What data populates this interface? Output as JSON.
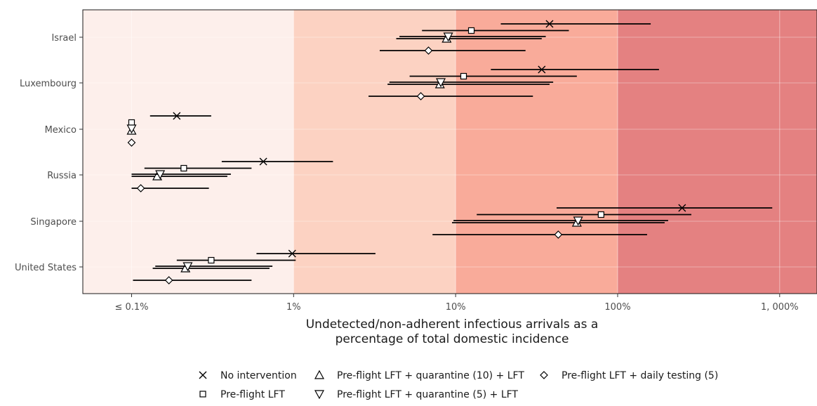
{
  "chart_data": {
    "type": "interval",
    "xscale": "log",
    "xlim": [
      0.05,
      1700
    ],
    "xticks": [
      {
        "value": 0.1,
        "label": "≤ 0.1%"
      },
      {
        "value": 1,
        "label": "1%"
      },
      {
        "value": 10,
        "label": "10%"
      },
      {
        "value": 100,
        "label": "100%"
      },
      {
        "value": 1000,
        "label": "1, 000%"
      }
    ],
    "xlabel_lines": [
      "Undetected/non-adherent infectious arrivals as a",
      "percentage of total domestic incidence"
    ],
    "ylabel": "",
    "grid": true,
    "legend_position": "bottom",
    "background_bands": [
      {
        "from": 0.05,
        "to": 1,
        "color": "#fdefeb"
      },
      {
        "from": 1,
        "to": 10,
        "color": "#fcd2c2"
      },
      {
        "from": 10,
        "to": 100,
        "color": "#f9ab9a"
      },
      {
        "from": 100,
        "to": 1700,
        "color": "#e48181"
      }
    ],
    "series": [
      {
        "name": "No intervention",
        "marker": "x"
      },
      {
        "name": "Pre-flight LFT",
        "marker": "square"
      },
      {
        "name": "Pre-flight LFT + quarantine (10) + LFT",
        "marker": "triangle-up"
      },
      {
        "name": "Pre-flight LFT + quarantine (5) + LFT",
        "marker": "triangle-down"
      },
      {
        "name": "Pre-flight LFT + daily testing (5)",
        "marker": "diamond"
      }
    ],
    "categories": [
      "Israel",
      "Luxembourg",
      "Mexico",
      "Russia",
      "Singapore",
      "United States"
    ],
    "data": [
      {
        "country": "Israel",
        "points": [
          {
            "series": 0,
            "median": 38,
            "low": 19,
            "high": 160
          },
          {
            "series": 1,
            "median": 12.5,
            "low": 6.2,
            "high": 50
          },
          {
            "series": 2,
            "median": 8.8,
            "low": 4.3,
            "high": 34
          },
          {
            "series": 3,
            "median": 9.0,
            "low": 4.5,
            "high": 36
          },
          {
            "series": 4,
            "median": 6.8,
            "low": 3.4,
            "high": 27
          }
        ]
      },
      {
        "country": "Luxembourg",
        "points": [
          {
            "series": 0,
            "median": 34,
            "low": 16.5,
            "high": 180
          },
          {
            "series": 1,
            "median": 11.2,
            "low": 5.2,
            "high": 56
          },
          {
            "series": 2,
            "median": 8.0,
            "low": 3.8,
            "high": 38
          },
          {
            "series": 3,
            "median": 8.1,
            "low": 3.9,
            "high": 40
          },
          {
            "series": 4,
            "median": 6.1,
            "low": 2.9,
            "high": 30
          }
        ]
      },
      {
        "country": "Mexico",
        "points": [
          {
            "series": 0,
            "median": 0.19,
            "low": 0.13,
            "high": 0.31
          },
          {
            "series": 1,
            "median": 0.1,
            "low": null,
            "high": null
          },
          {
            "series": 2,
            "median": 0.1,
            "low": null,
            "high": null
          },
          {
            "series": 3,
            "median": 0.1,
            "low": null,
            "high": null
          },
          {
            "series": 4,
            "median": 0.1,
            "low": null,
            "high": null
          }
        ]
      },
      {
        "country": "Russia",
        "points": [
          {
            "series": 0,
            "median": 0.65,
            "low": 0.36,
            "high": 1.75
          },
          {
            "series": 1,
            "median": 0.21,
            "low": 0.12,
            "high": 0.55
          },
          {
            "series": 2,
            "median": 0.144,
            "low": 0.1,
            "high": 0.39
          },
          {
            "series": 3,
            "median": 0.15,
            "low": 0.1,
            "high": 0.41
          },
          {
            "series": 4,
            "median": 0.114,
            "low": 0.1,
            "high": 0.3
          }
        ]
      },
      {
        "country": "Singapore",
        "points": [
          {
            "series": 0,
            "median": 250,
            "low": 42,
            "high": 900
          },
          {
            "series": 1,
            "median": 79,
            "low": 13.5,
            "high": 285
          },
          {
            "series": 2,
            "median": 56,
            "low": 9.5,
            "high": 195
          },
          {
            "series": 3,
            "median": 57,
            "low": 9.7,
            "high": 205
          },
          {
            "series": 4,
            "median": 43,
            "low": 7.2,
            "high": 152
          }
        ]
      },
      {
        "country": "United States",
        "points": [
          {
            "series": 0,
            "median": 0.98,
            "low": 0.59,
            "high": 3.2
          },
          {
            "series": 1,
            "median": 0.31,
            "low": 0.19,
            "high": 1.03
          },
          {
            "series": 2,
            "median": 0.215,
            "low": 0.135,
            "high": 0.71
          },
          {
            "series": 3,
            "median": 0.222,
            "low": 0.14,
            "high": 0.74
          },
          {
            "series": 4,
            "median": 0.17,
            "low": 0.102,
            "high": 0.55
          }
        ]
      }
    ]
  }
}
